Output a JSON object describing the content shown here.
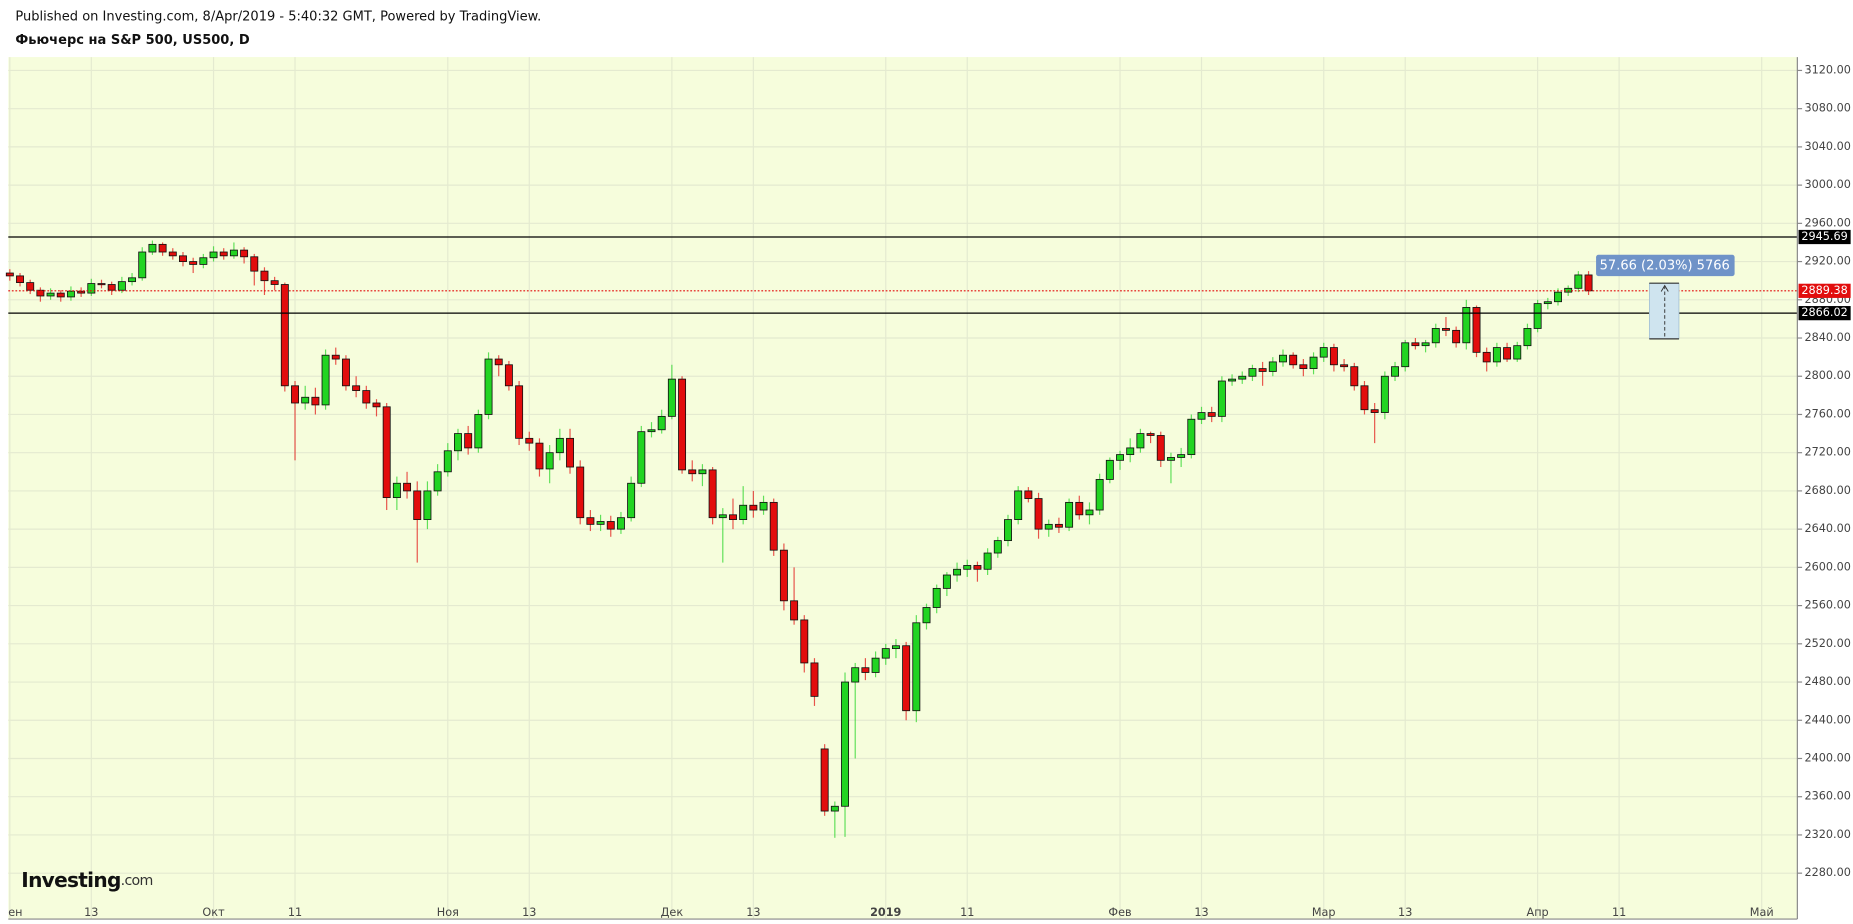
{
  "header": {
    "published": "Published on Investing.com, 8/Apr/2019 - 5:40:32 GMT, Powered by TradingView.",
    "symbol": "Фьючерс на S&P 500, US500, D"
  },
  "watermark": {
    "brand": "Investing",
    "suffix": ".com"
  },
  "chart_data": {
    "type": "candlestick",
    "up_color": "#22d422",
    "down_color": "#e20d0d",
    "ylim": [
      2232,
      3134
    ],
    "yticks": [
      {
        "value": 2280,
        "label": "2280.00"
      },
      {
        "value": 2320,
        "label": "2320.00"
      },
      {
        "value": 2360,
        "label": "2360.00"
      },
      {
        "value": 2400,
        "label": "2400.00"
      },
      {
        "value": 2440,
        "label": "2440.00"
      },
      {
        "value": 2480,
        "label": "2480.00"
      },
      {
        "value": 2520,
        "label": "2520.00"
      },
      {
        "value": 2560,
        "label": "2560.00"
      },
      {
        "value": 2600,
        "label": "2600.00"
      },
      {
        "value": 2640,
        "label": "2640.00"
      },
      {
        "value": 2680,
        "label": "2680.00"
      },
      {
        "value": 2720,
        "label": "2720.00"
      },
      {
        "value": 2760,
        "label": "2760.00"
      },
      {
        "value": 2800,
        "label": "2800.00"
      },
      {
        "value": 2840,
        "label": "2840.00"
      },
      {
        "value": 2880,
        "label": "2880.00"
      },
      {
        "value": 2920,
        "label": "2920.00"
      },
      {
        "value": 2960,
        "label": "2960.00"
      },
      {
        "value": 3000,
        "label": "3000.00"
      },
      {
        "value": 3040,
        "label": "3040.00"
      },
      {
        "value": 3080,
        "label": "3080.00"
      },
      {
        "value": 3120,
        "label": "3120.00"
      }
    ],
    "grid": true,
    "hlines": [
      2945.69,
      2866.02
    ],
    "last_price": 2889.38,
    "measure_label": "57.66 (2.03%) 5766",
    "categories": [
      "ен",
      null,
      null,
      null,
      null,
      null,
      null,
      null,
      "13",
      null,
      null,
      null,
      null,
      null,
      null,
      null,
      null,
      null,
      null,
      null,
      "Окт",
      null,
      null,
      null,
      null,
      null,
      null,
      null,
      "11",
      null,
      null,
      null,
      null,
      null,
      null,
      null,
      null,
      null,
      null,
      null,
      null,
      null,
      null,
      "Ноя",
      null,
      null,
      null,
      null,
      null,
      null,
      null,
      "13",
      null,
      null,
      null,
      null,
      null,
      null,
      null,
      null,
      null,
      null,
      null,
      null,
      null,
      "Дек",
      null,
      null,
      null,
      null,
      null,
      null,
      null,
      "13",
      null,
      null,
      null,
      null,
      null,
      null,
      null,
      null,
      null,
      null,
      null,
      null,
      "2019",
      null,
      null,
      null,
      null,
      null,
      null,
      null,
      "11",
      null,
      null,
      null,
      null,
      null,
      null,
      null,
      null,
      null,
      null,
      null,
      null,
      null,
      null,
      "Фев",
      null,
      null,
      null,
      null,
      null,
      null,
      null,
      "13",
      null,
      null,
      null,
      null,
      null,
      null,
      null,
      null,
      null,
      null,
      null,
      "Мар",
      null,
      null,
      null,
      null,
      null,
      null,
      null,
      "13",
      null,
      null,
      null,
      null,
      null,
      null,
      null,
      null,
      null,
      null,
      null,
      null,
      "Апр",
      null,
      null,
      null,
      null,
      null,
      null,
      null,
      "11",
      null,
      null,
      null,
      null,
      null,
      null,
      null,
      null,
      null,
      null,
      null,
      null,
      null,
      "Май",
      null,
      null,
      null
    ],
    "open": [
      2908,
      2905,
      2898,
      2890,
      2884,
      2887,
      2883,
      2889,
      2887,
      2897,
      2896,
      2890,
      2899,
      2903,
      2930,
      2938,
      2930,
      2926,
      2920,
      2917,
      2924,
      2930,
      2926,
      2932,
      2925,
      2910,
      2900,
      2896,
      2790,
      2772,
      2778,
      2770,
      2822,
      2818,
      2790,
      2785,
      2772,
      2768,
      2673,
      2688,
      2680,
      2650,
      2680,
      2700,
      2722,
      2740,
      2725,
      2760,
      2818,
      2812,
      2790,
      2735,
      2730,
      2703,
      2720,
      2735,
      2705,
      2652,
      2645,
      2648,
      2640,
      2652,
      2688,
      2742,
      2744,
      2758,
      2797,
      2702,
      2698,
      2702,
      2652,
      2655,
      2650,
      2665,
      2660,
      2668,
      2618,
      2565,
      2545,
      2500,
      2410,
      2345,
      2350,
      2480,
      2495,
      2490,
      2505,
      2515,
      2518,
      2450,
      2542,
      2558,
      2578,
      2592,
      2598,
      2602,
      2598,
      2615,
      2628,
      2650,
      2680,
      2672,
      2640,
      2645,
      2642,
      2668,
      2655,
      2660,
      2692,
      2712,
      2718,
      2725,
      2740,
      2738,
      2712,
      2715,
      2718,
      2755,
      2762,
      2758,
      2795,
      2797,
      2800,
      2808,
      2805,
      2815,
      2822,
      2812,
      2808,
      2820,
      2830,
      2812,
      2810,
      2790,
      2765,
      2762,
      2800,
      2810,
      2835,
      2832,
      2835,
      2850,
      2848,
      2835,
      2872,
      2825,
      2815,
      2830,
      2818,
      2832,
      2850,
      2876,
      2878,
      2888,
      2892,
      2906,
      null,
      null,
      null,
      null,
      null,
      null,
      null,
      null,
      null,
      null,
      null,
      null,
      null,
      null,
      null,
      null,
      null,
      null,
      null,
      null
    ],
    "high": [
      2912,
      2908,
      2901,
      2893,
      2892,
      2890,
      2894,
      2893,
      2902,
      2901,
      2899,
      2904,
      2908,
      2935,
      2942,
      2940,
      2934,
      2930,
      2924,
      2928,
      2936,
      2934,
      2940,
      2935,
      2928,
      2914,
      2904,
      2898,
      2795,
      2790,
      2788,
      2828,
      2830,
      2822,
      2800,
      2790,
      2776,
      2772,
      2695,
      2700,
      2690,
      2690,
      2708,
      2730,
      2745,
      2748,
      2765,
      2825,
      2822,
      2816,
      2795,
      2742,
      2735,
      2728,
      2745,
      2745,
      2712,
      2660,
      2655,
      2654,
      2658,
      2695,
      2748,
      2752,
      2765,
      2812,
      2800,
      2712,
      2708,
      2705,
      2662,
      2672,
      2685,
      2680,
      2675,
      2672,
      2625,
      2600,
      2550,
      2505,
      2415,
      2355,
      2490,
      2500,
      2505,
      2512,
      2520,
      2525,
      2522,
      2550,
      2562,
      2582,
      2595,
      2605,
      2608,
      2606,
      2620,
      2632,
      2655,
      2685,
      2684,
      2678,
      2650,
      2652,
      2672,
      2675,
      2668,
      2698,
      2715,
      2722,
      2735,
      2745,
      2742,
      2742,
      2720,
      2725,
      2760,
      2768,
      2768,
      2800,
      2802,
      2805,
      2812,
      2815,
      2820,
      2828,
      2825,
      2818,
      2825,
      2835,
      2834,
      2818,
      2814,
      2795,
      2772,
      2805,
      2815,
      2838,
      2840,
      2838,
      2855,
      2862,
      2852,
      2880,
      2874,
      2830,
      2835,
      2835,
      2836,
      2855,
      2880,
      2882,
      2892,
      2895,
      2910,
      2910,
      null,
      null,
      null,
      null,
      null,
      null,
      null,
      null,
      null,
      null,
      null,
      null,
      null,
      null,
      null,
      null,
      null,
      null,
      null,
      null
    ],
    "low": [
      2900,
      2894,
      2886,
      2878,
      2880,
      2878,
      2879,
      2883,
      2884,
      2892,
      2885,
      2887,
      2895,
      2900,
      2927,
      2926,
      2922,
      2915,
      2908,
      2913,
      2920,
      2922,
      2923,
      2918,
      2895,
      2885,
      2890,
      2784,
      2712,
      2765,
      2760,
      2765,
      2812,
      2785,
      2778,
      2766,
      2758,
      2660,
      2660,
      2672,
      2605,
      2640,
      2675,
      2695,
      2712,
      2718,
      2720,
      2755,
      2800,
      2785,
      2728,
      2722,
      2695,
      2688,
      2712,
      2698,
      2645,
      2638,
      2638,
      2632,
      2635,
      2648,
      2684,
      2736,
      2740,
      2755,
      2698,
      2690,
      2685,
      2645,
      2605,
      2640,
      2645,
      2652,
      2655,
      2612,
      2555,
      2540,
      2490,
      2455,
      2340,
      2317,
      2318,
      2400,
      2482,
      2485,
      2498,
      2505,
      2440,
      2438,
      2535,
      2552,
      2570,
      2585,
      2590,
      2585,
      2592,
      2610,
      2622,
      2645,
      2668,
      2630,
      2632,
      2636,
      2638,
      2650,
      2645,
      2655,
      2688,
      2702,
      2710,
      2720,
      2730,
      2705,
      2688,
      2705,
      2714,
      2750,
      2752,
      2752,
      2790,
      2792,
      2795,
      2790,
      2800,
      2810,
      2808,
      2800,
      2802,
      2815,
      2805,
      2805,
      2785,
      2760,
      2730,
      2755,
      2795,
      2805,
      2828,
      2825,
      2830,
      2842,
      2830,
      2828,
      2820,
      2805,
      2810,
      2815,
      2815,
      2828,
      2846,
      2870,
      2874,
      2884,
      2888,
      2885,
      null,
      null,
      null,
      null,
      null,
      null,
      null,
      null,
      null,
      null,
      null,
      null,
      null,
      null,
      null,
      null,
      null,
      null,
      null,
      null
    ],
    "close": [
      2905,
      2898,
      2890,
      2884,
      2887,
      2883,
      2889,
      2887,
      2897,
      2896,
      2890,
      2899,
      2903,
      2930,
      2938,
      2930,
      2926,
      2920,
      2917,
      2924,
      2930,
      2926,
      2932,
      2925,
      2910,
      2900,
      2896,
      2790,
      2772,
      2778,
      2770,
      2822,
      2818,
      2790,
      2785,
      2772,
      2768,
      2673,
      2688,
      2680,
      2650,
      2680,
      2700,
      2722,
      2740,
      2725,
      2760,
      2818,
      2812,
      2790,
      2735,
      2730,
      2703,
      2720,
      2735,
      2705,
      2652,
      2645,
      2648,
      2640,
      2652,
      2688,
      2742,
      2744,
      2758,
      2797,
      2702,
      2698,
      2702,
      2652,
      2655,
      2650,
      2665,
      2660,
      2668,
      2618,
      2565,
      2545,
      2500,
      2465,
      2345,
      2350,
      2480,
      2495,
      2490,
      2505,
      2515,
      2518,
      2450,
      2542,
      2558,
      2578,
      2592,
      2598,
      2602,
      2598,
      2615,
      2628,
      2650,
      2680,
      2672,
      2640,
      2645,
      2642,
      2668,
      2655,
      2660,
      2692,
      2712,
      2718,
      2725,
      2740,
      2738,
      2712,
      2715,
      2718,
      2755,
      2762,
      2758,
      2795,
      2797,
      2800,
      2808,
      2805,
      2815,
      2822,
      2812,
      2808,
      2820,
      2830,
      2812,
      2810,
      2790,
      2765,
      2762,
      2800,
      2810,
      2835,
      2832,
      2835,
      2850,
      2848,
      2835,
      2872,
      2825,
      2815,
      2830,
      2818,
      2832,
      2850,
      2876,
      2878,
      2888,
      2892,
      2906,
      2889.38,
      null,
      null,
      null,
      null,
      null,
      null,
      null,
      null,
      null,
      null,
      null,
      null,
      null,
      null,
      null,
      null,
      null,
      null,
      null,
      null
    ]
  }
}
